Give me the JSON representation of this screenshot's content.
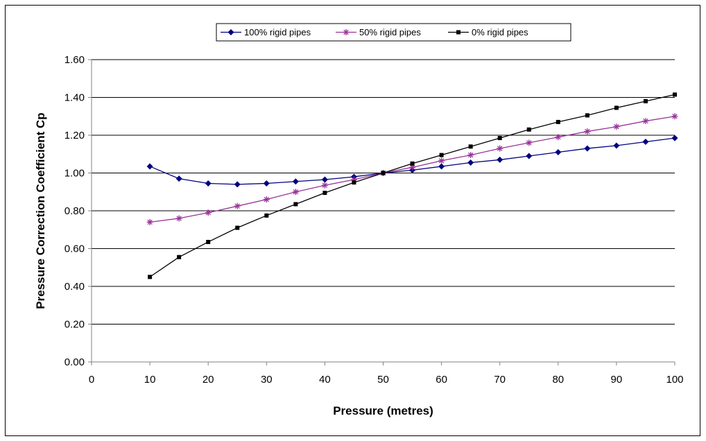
{
  "chart_data": {
    "type": "line",
    "title": "",
    "xlabel": "Pressure (metres)",
    "ylabel": "Pressure Correction Coefficient Cp",
    "xlim": [
      0,
      100
    ],
    "ylim": [
      0,
      1.6
    ],
    "x_ticks": [
      "0",
      "10",
      "20",
      "30",
      "40",
      "50",
      "60",
      "70",
      "80",
      "90",
      "100"
    ],
    "y_ticks": [
      "0.00",
      "0.20",
      "0.40",
      "0.60",
      "0.80",
      "1.00",
      "1.20",
      "1.40",
      "1.60"
    ],
    "grid": "horizontal",
    "legend_position": "top",
    "x": [
      10,
      15,
      20,
      25,
      30,
      35,
      40,
      45,
      50,
      55,
      60,
      65,
      70,
      75,
      80,
      85,
      90,
      95,
      100
    ],
    "series": [
      {
        "name": "100% rigid pipes",
        "color": "#000080",
        "marker": "diamond",
        "values": [
          1.035,
          0.97,
          0.945,
          0.94,
          0.945,
          0.955,
          0.965,
          0.98,
          1.0,
          1.015,
          1.035,
          1.055,
          1.07,
          1.09,
          1.11,
          1.13,
          1.145,
          1.165,
          1.185
        ]
      },
      {
        "name": "50% rigid pipes",
        "color": "#993399",
        "marker": "star",
        "values": [
          0.74,
          0.76,
          0.79,
          0.825,
          0.86,
          0.9,
          0.935,
          0.965,
          1.0,
          1.03,
          1.065,
          1.095,
          1.13,
          1.16,
          1.19,
          1.22,
          1.245,
          1.275,
          1.3
        ]
      },
      {
        "name": "0% rigid pipes",
        "color": "#000000",
        "marker": "square",
        "values": [
          0.45,
          0.555,
          0.635,
          0.71,
          0.775,
          0.835,
          0.895,
          0.95,
          1.0,
          1.05,
          1.095,
          1.14,
          1.185,
          1.23,
          1.27,
          1.305,
          1.345,
          1.38,
          1.415
        ]
      }
    ]
  }
}
